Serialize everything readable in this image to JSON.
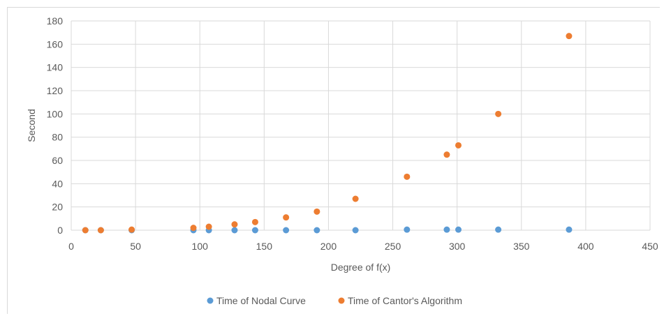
{
  "chart_data": {
    "type": "scatter",
    "title": "",
    "xlabel": "Degree  of f(x)",
    "ylabel": "Second",
    "xlim": [
      0,
      450
    ],
    "ylim": [
      0,
      180
    ],
    "xticks": [
      0,
      50,
      100,
      150,
      200,
      250,
      300,
      350,
      400,
      450
    ],
    "yticks": [
      0,
      20,
      40,
      60,
      80,
      100,
      120,
      140,
      160,
      180
    ],
    "grid": true,
    "legend_position": "bottom",
    "series": [
      {
        "name": "Time of Nodal Curve",
        "color": "#5b9bd5",
        "points": [
          [
            11,
            0
          ],
          [
            23,
            0
          ],
          [
            47,
            0
          ],
          [
            95,
            0
          ],
          [
            107,
            0
          ],
          [
            127,
            0
          ],
          [
            143,
            0
          ],
          [
            167,
            0
          ],
          [
            191,
            0
          ],
          [
            221,
            0
          ],
          [
            261,
            0.5
          ],
          [
            292,
            0.5
          ],
          [
            301,
            0.5
          ],
          [
            332,
            0.5
          ],
          [
            387,
            0.5
          ]
        ]
      },
      {
        "name": "Time of Cantor's Algorithm",
        "color": "#ed7d31",
        "points": [
          [
            11,
            0
          ],
          [
            23,
            0
          ],
          [
            47,
            0.5
          ],
          [
            95,
            2
          ],
          [
            107,
            3
          ],
          [
            127,
            5
          ],
          [
            143,
            7
          ],
          [
            167,
            11
          ],
          [
            191,
            16
          ],
          [
            221,
            27
          ],
          [
            261,
            46
          ],
          [
            292,
            65
          ],
          [
            301,
            73
          ],
          [
            332,
            100
          ],
          [
            387,
            167
          ]
        ]
      }
    ]
  }
}
